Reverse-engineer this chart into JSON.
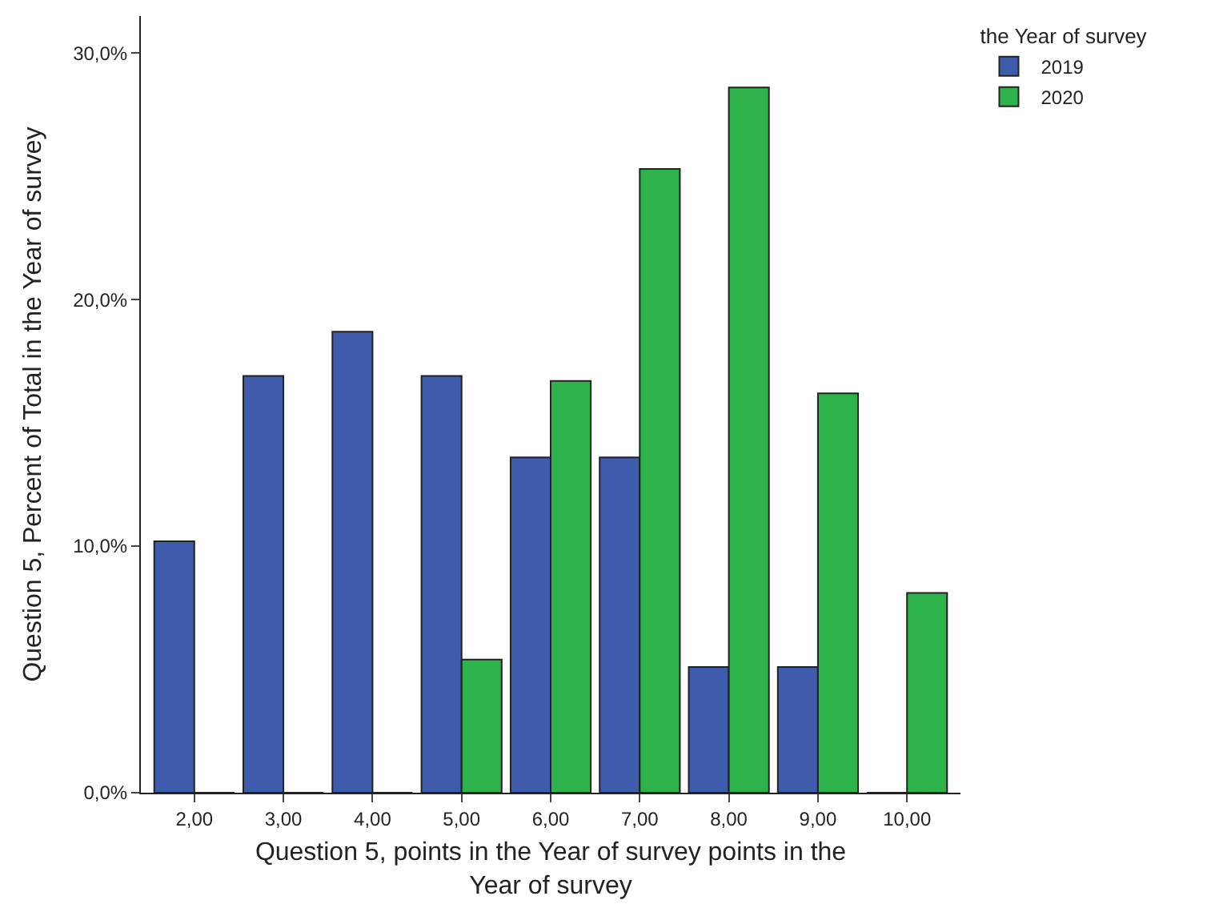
{
  "chart_data": {
    "type": "bar",
    "xlabel": "Question 5, points in the Year of survey points in the Year of survey",
    "ylabel": "Question 5, Percent of Total in the Year of survey",
    "legend_title": "the Year of survey",
    "legend": "top right",
    "categories": [
      "2,00",
      "3,00",
      "4,00",
      "5,00",
      "6,00",
      "7,00",
      "8,00",
      "9,00",
      "10,00"
    ],
    "series": [
      {
        "name": "2019",
        "color": "#3f5bab",
        "values": [
          10.2,
          16.9,
          18.7,
          16.9,
          13.6,
          13.6,
          5.1,
          5.1,
          0
        ]
      },
      {
        "name": "2020",
        "color": "#2db34a",
        "values": [
          0,
          0,
          0,
          5.4,
          16.7,
          25.3,
          28.6,
          16.2,
          8.1
        ]
      }
    ],
    "ylim": [
      0,
      31.5
    ],
    "yticks": [
      {
        "value": 0,
        "label": "0,0%"
      },
      {
        "value": 10,
        "label": "10,0%"
      },
      {
        "value": 20,
        "label": "20,0%"
      },
      {
        "value": 30,
        "label": "30,0%"
      }
    ]
  }
}
